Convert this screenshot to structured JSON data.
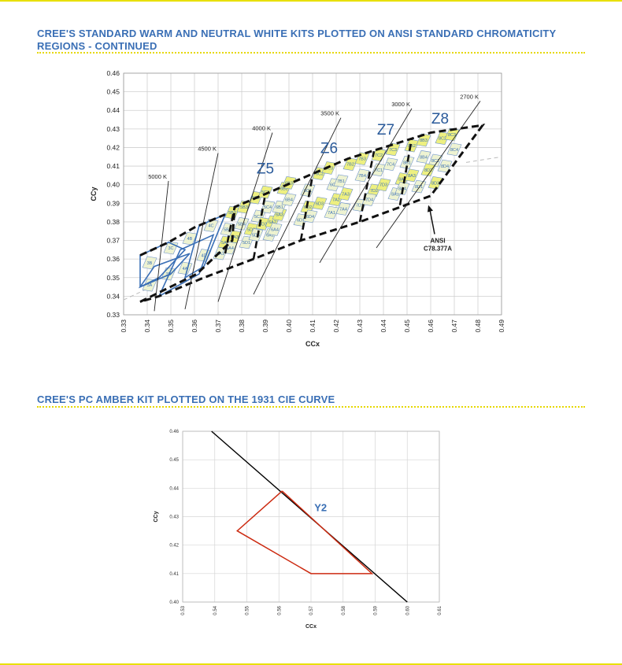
{
  "colors": {
    "accent": "#e8e000",
    "heading": "#3a6fb5",
    "amber": "#cc2a10",
    "binFill": "#eef3d0",
    "binHi": "#eef07a"
  },
  "section1": {
    "title": "CREE'S STANDARD WARM AND NEUTRAL WHITE KITS PLOTTED ON ANSI STANDARD CHROMATICITY REGIONS - CONTINUED"
  },
  "section2": {
    "title": "CREE'S PC AMBER KIT PLOTTED ON THE 1931 CIE CURVE"
  },
  "chart_data": [
    {
      "type": "scatter",
      "title": "Cree's standard warm and neutral white kits on ANSI chromaticity regions",
      "xlabel": "CCx",
      "ylabel": "CCy",
      "xlim": [
        0.33,
        0.49
      ],
      "ylim": [
        0.33,
        0.46
      ],
      "xticks": [
        "0.33",
        "0.34",
        "0.35",
        "0.36",
        "0.37",
        "0.38",
        "0.39",
        "0.40",
        "0.41",
        "0.42",
        "0.43",
        "0.44",
        "0.45",
        "0.46",
        "0.47",
        "0.48",
        "0.49"
      ],
      "yticks": [
        "0.33",
        "0.34",
        "0.35",
        "0.36",
        "0.37",
        "0.38",
        "0.39",
        "0.40",
        "0.41",
        "0.42",
        "0.43",
        "0.44",
        "0.45",
        "0.46"
      ],
      "grid": true,
      "cct_lines": [
        {
          "label": "5000 K",
          "x1": 0.343,
          "y1": 0.332,
          "x2": 0.349,
          "y2": 0.402
        },
        {
          "label": "4500 K",
          "x1": 0.356,
          "y1": 0.333,
          "x2": 0.37,
          "y2": 0.417
        },
        {
          "label": "4000 K",
          "x1": 0.37,
          "y1": 0.337,
          "x2": 0.393,
          "y2": 0.428
        },
        {
          "label": "3500 K",
          "x1": 0.385,
          "y1": 0.341,
          "x2": 0.422,
          "y2": 0.436
        },
        {
          "label": "3000 K",
          "x1": 0.413,
          "y1": 0.358,
          "x2": 0.452,
          "y2": 0.441
        },
        {
          "label": "2700 K",
          "x1": 0.437,
          "y1": 0.366,
          "x2": 0.481,
          "y2": 0.445
        }
      ],
      "zones": [
        {
          "label": "Z5",
          "x": 0.39,
          "y": 0.406
        },
        {
          "label": "Z6",
          "x": 0.417,
          "y": 0.417
        },
        {
          "label": "Z7",
          "x": 0.441,
          "y": 0.427
        },
        {
          "label": "Z8",
          "x": 0.464,
          "y": 0.433
        }
      ],
      "annotation": {
        "line1": "ANSI",
        "line2": "C78.377A",
        "x": 0.463,
        "y": 0.37,
        "ax": 0.459,
        "ay": 0.389
      },
      "kit_outlines": [
        [
          [
            0.337,
            0.337
          ],
          [
            0.361,
            0.352
          ],
          [
            0.376,
            0.37
          ],
          [
            0.377,
            0.388
          ],
          [
            0.39,
            0.395
          ],
          [
            0.425,
            0.414
          ],
          [
            0.46,
            0.428
          ],
          [
            0.482,
            0.432
          ],
          [
            0.46,
            0.394
          ],
          [
            0.43,
            0.38
          ],
          [
            0.405,
            0.37
          ],
          [
            0.385,
            0.36
          ],
          [
            0.364,
            0.35
          ],
          [
            0.345,
            0.34
          ]
        ],
        [
          [
            0.337,
            0.362
          ],
          [
            0.349,
            0.369
          ],
          [
            0.36,
            0.377
          ],
          [
            0.373,
            0.384
          ]
        ]
      ],
      "bins": [
        {
          "label": "3A",
          "x": 0.341,
          "y": 0.346
        },
        {
          "label": "3B",
          "x": 0.341,
          "y": 0.358
        },
        {
          "label": "3C",
          "x": 0.35,
          "y": 0.366
        },
        {
          "label": "3D",
          "x": 0.349,
          "y": 0.352
        },
        {
          "label": "4A",
          "x": 0.356,
          "y": 0.355
        },
        {
          "label": "4B",
          "x": 0.358,
          "y": 0.371
        },
        {
          "label": "4C",
          "x": 0.367,
          "y": 0.378
        },
        {
          "label": "4D",
          "x": 0.364,
          "y": 0.362
        },
        {
          "label": "5A1",
          "x": 0.371,
          "y": 0.363
        },
        {
          "label": "5A2",
          "x": 0.373,
          "y": 0.369
        },
        {
          "label": "5A3",
          "x": 0.377,
          "y": 0.372
        },
        {
          "label": "5A4",
          "x": 0.375,
          "y": 0.366
        },
        {
          "label": "5B1",
          "x": 0.374,
          "y": 0.376
        },
        {
          "label": "5B2",
          "x": 0.376,
          "y": 0.385
        },
        {
          "label": "5B3",
          "x": 0.381,
          "y": 0.388
        },
        {
          "label": "5B4",
          "x": 0.38,
          "y": 0.379
        },
        {
          "label": "5C1",
          "x": 0.387,
          "y": 0.383
        },
        {
          "label": "5C2",
          "x": 0.386,
          "y": 0.393
        },
        {
          "label": "5C3",
          "x": 0.39,
          "y": 0.396
        },
        {
          "label": "5C4",
          "x": 0.391,
          "y": 0.388
        },
        {
          "label": "5D1",
          "x": 0.382,
          "y": 0.369
        },
        {
          "label": "5D2",
          "x": 0.384,
          "y": 0.376
        },
        {
          "label": "5D3",
          "x": 0.389,
          "y": 0.379
        },
        {
          "label": "5D4",
          "x": 0.386,
          "y": 0.373
        },
        {
          "label": "6A1",
          "x": 0.392,
          "y": 0.373
        },
        {
          "label": "6A2",
          "x": 0.393,
          "y": 0.38
        },
        {
          "label": "6A3",
          "x": 0.396,
          "y": 0.384
        },
        {
          "label": "6A4",
          "x": 0.394,
          "y": 0.376
        },
        {
          "label": "6B1",
          "x": 0.396,
          "y": 0.388
        },
        {
          "label": "6B2",
          "x": 0.398,
          "y": 0.398
        },
        {
          "label": "6B3",
          "x": 0.4,
          "y": 0.401
        },
        {
          "label": "6B4",
          "x": 0.4,
          "y": 0.392
        },
        {
          "label": "6C1",
          "x": 0.408,
          "y": 0.397
        },
        {
          "label": "6C2",
          "x": 0.413,
          "y": 0.406
        },
        {
          "label": "6C3",
          "x": 0.417,
          "y": 0.409
        },
        {
          "label": "6C4",
          "x": 0.419,
          "y": 0.4
        },
        {
          "label": "6D1",
          "x": 0.405,
          "y": 0.381
        },
        {
          "label": "6D2",
          "x": 0.408,
          "y": 0.388
        },
        {
          "label": "6D3",
          "x": 0.413,
          "y": 0.39
        },
        {
          "label": "6D4",
          "x": 0.409,
          "y": 0.383
        },
        {
          "label": "7A1",
          "x": 0.418,
          "y": 0.385
        },
        {
          "label": "7A2",
          "x": 0.42,
          "y": 0.392
        },
        {
          "label": "7A3",
          "x": 0.424,
          "y": 0.395
        },
        {
          "label": "7A4",
          "x": 0.423,
          "y": 0.387
        },
        {
          "label": "7B1",
          "x": 0.422,
          "y": 0.402
        },
        {
          "label": "7B2",
          "x": 0.426,
          "y": 0.411
        },
        {
          "label": "7B3",
          "x": 0.431,
          "y": 0.414
        },
        {
          "label": "7B4",
          "x": 0.431,
          "y": 0.405
        },
        {
          "label": "7C1",
          "x": 0.438,
          "y": 0.408
        },
        {
          "label": "7C2",
          "x": 0.438,
          "y": 0.416
        },
        {
          "label": "7C3",
          "x": 0.444,
          "y": 0.419
        },
        {
          "label": "7C4",
          "x": 0.443,
          "y": 0.411
        },
        {
          "label": "7D1",
          "x": 0.43,
          "y": 0.389
        },
        {
          "label": "7D2",
          "x": 0.436,
          "y": 0.397
        },
        {
          "label": "7D3",
          "x": 0.44,
          "y": 0.4
        },
        {
          "label": "7D4",
          "x": 0.434,
          "y": 0.392
        },
        {
          "label": "8A1",
          "x": 0.445,
          "y": 0.395
        },
        {
          "label": "8A2",
          "x": 0.448,
          "y": 0.403
        },
        {
          "label": "8A3",
          "x": 0.452,
          "y": 0.405
        },
        {
          "label": "8A4",
          "x": 0.448,
          "y": 0.398
        },
        {
          "label": "8B1",
          "x": 0.45,
          "y": 0.412
        },
        {
          "label": "8B2",
          "x": 0.452,
          "y": 0.421
        },
        {
          "label": "8B3",
          "x": 0.457,
          "y": 0.424
        },
        {
          "label": "8B4",
          "x": 0.457,
          "y": 0.415
        },
        {
          "label": "8C1",
          "x": 0.462,
          "y": 0.413
        },
        {
          "label": "8C2",
          "x": 0.465,
          "y": 0.425
        },
        {
          "label": "8C3",
          "x": 0.469,
          "y": 0.427
        },
        {
          "label": "8C4",
          "x": 0.47,
          "y": 0.419
        },
        {
          "label": "8D1",
          "x": 0.455,
          "y": 0.399
        },
        {
          "label": "8D2",
          "x": 0.459,
          "y": 0.408
        },
        {
          "label": "8D3",
          "x": 0.462,
          "y": 0.401
        },
        {
          "label": "8D4",
          "x": 0.466,
          "y": 0.41
        }
      ]
    },
    {
      "type": "line",
      "title": "Cree's PC Amber kit on the 1931 CIE curve",
      "xlabel": "CCx",
      "ylabel": "CCy",
      "xlim": [
        0.53,
        0.61
      ],
      "ylim": [
        0.4,
        0.46
      ],
      "xticks": [
        "0.53",
        "0.54",
        "0.55",
        "0.56",
        "0.57",
        "0.58",
        "0.59",
        "0.60",
        "0.61"
      ],
      "yticks": [
        "0.40",
        "0.41",
        "0.42",
        "0.43",
        "0.44",
        "0.45",
        "0.46"
      ],
      "grid": true,
      "series": [
        {
          "name": "CIE locus",
          "color": "#000000",
          "x": [
            0.539,
            0.6
          ],
          "y": [
            0.46,
            0.4
          ]
        },
        {
          "name": "Y2",
          "color": "#cc2a10",
          "x": [
            0.561,
            0.589,
            0.57,
            0.547,
            0.561
          ],
          "y": [
            0.439,
            0.41,
            0.41,
            0.425,
            0.439
          ]
        }
      ],
      "labels": [
        {
          "text": "Y2",
          "x": 0.573,
          "y": 0.432
        }
      ]
    }
  ]
}
